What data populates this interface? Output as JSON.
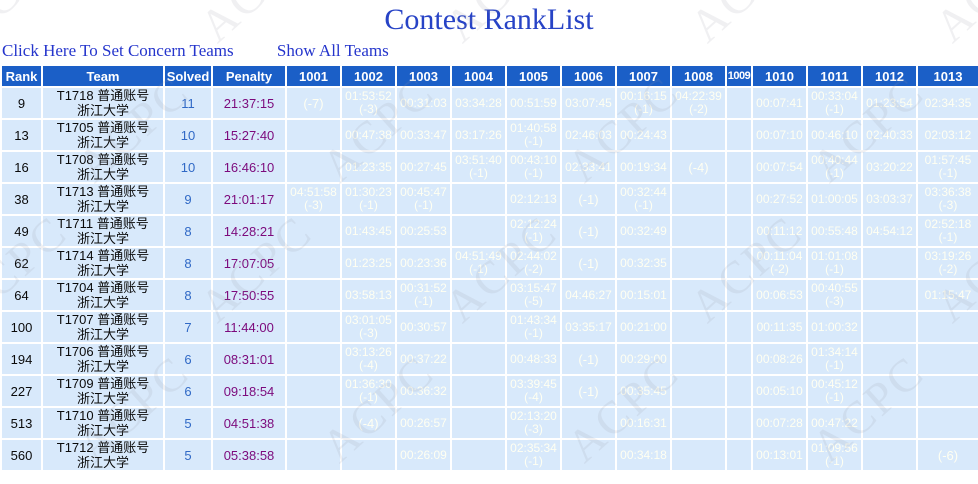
{
  "watermark": "ACPC",
  "title": "Contest RankList",
  "links": {
    "set_concern": "Click Here To Set Concern Teams",
    "show_all": "Show All Teams"
  },
  "colors": {
    "header_bg": "#1B5FC7",
    "row_bg": "#D8E9FB",
    "accepted_bg": "#007B00",
    "failed_bg": "#FF0000",
    "cell_text_on_color": "#FFFFF2",
    "solved_text": "#3069C6",
    "penalty_text": "#7C0A7C",
    "title_text": "#2743C6",
    "link_text": "#2535CC"
  },
  "table": {
    "fixed_headers": [
      "Rank",
      "Team",
      "Solved",
      "Penalty"
    ],
    "problems": [
      "1001",
      "1002",
      "1003",
      "1004",
      "1005",
      "1006",
      "1007",
      "1008",
      "1009",
      "1010",
      "1011",
      "1012",
      "1013"
    ],
    "rows": [
      {
        "rank": "9",
        "team": [
          "T1718 普通账号",
          "浙江大学"
        ],
        "solved": "11",
        "penalty": "21:37:15",
        "cells": [
          {
            "s": "no",
            "x": "(-7)"
          },
          {
            "s": "ac",
            "t": "01:53:52",
            "x": "(-3)"
          },
          {
            "s": "ac",
            "t": "00:31:03"
          },
          {
            "s": "ac",
            "t": "03:34:28"
          },
          {
            "s": "ac",
            "t": "00:51:59"
          },
          {
            "s": "ac",
            "t": "03:07:45"
          },
          {
            "s": "ac",
            "t": "00:16:15",
            "x": "(-1)"
          },
          {
            "s": "ac",
            "t": "04:22:39",
            "x": "(-2)"
          },
          null,
          {
            "s": "ac",
            "t": "00:07:41"
          },
          {
            "s": "ac",
            "t": "00:33:04",
            "x": "(-1)"
          },
          {
            "s": "ac",
            "t": "01:23:54"
          },
          {
            "s": "ac",
            "t": "02:34:35"
          }
        ]
      },
      {
        "rank": "13",
        "team": [
          "T1705 普通账号",
          "浙江大学"
        ],
        "solved": "10",
        "penalty": "15:27:40",
        "cells": [
          null,
          {
            "s": "ac",
            "t": "00:47:38"
          },
          {
            "s": "ac",
            "t": "00:33:47"
          },
          {
            "s": "ac",
            "t": "03:17:26"
          },
          {
            "s": "ac",
            "t": "01:40:58",
            "x": "(-1)"
          },
          {
            "s": "ac",
            "t": "02:46:03"
          },
          {
            "s": "ac",
            "t": "00:24:43"
          },
          null,
          null,
          {
            "s": "ac",
            "t": "00:07:10"
          },
          {
            "s": "ac",
            "t": "00:46:10"
          },
          {
            "s": "ac",
            "t": "02:40:33"
          },
          {
            "s": "ac",
            "t": "02:03:12"
          }
        ]
      },
      {
        "rank": "16",
        "team": [
          "T1708 普通账号",
          "浙江大学"
        ],
        "solved": "10",
        "penalty": "16:46:10",
        "cells": [
          null,
          {
            "s": "ac",
            "t": "01:23:35"
          },
          {
            "s": "ac",
            "t": "00:27:45"
          },
          {
            "s": "ac",
            "t": "03:51:40",
            "x": "(-1)"
          },
          {
            "s": "ac",
            "t": "00:43:10",
            "x": "(-1)"
          },
          {
            "s": "ac",
            "t": "02:33:41"
          },
          {
            "s": "ac",
            "t": "00:19:34"
          },
          {
            "s": "no",
            "x": "(-4)"
          },
          null,
          {
            "s": "ac",
            "t": "00:07:54"
          },
          {
            "s": "ac",
            "t": "00:40:44",
            "x": "(-1)"
          },
          {
            "s": "ac",
            "t": "03:20:22"
          },
          {
            "s": "ac",
            "t": "01:57:45",
            "x": "(-1)"
          }
        ]
      },
      {
        "rank": "38",
        "team": [
          "T1713 普通账号",
          "浙江大学"
        ],
        "solved": "9",
        "penalty": "21:01:17",
        "cells": [
          {
            "s": "ac",
            "t": "04:51:58",
            "x": "(-3)"
          },
          {
            "s": "ac",
            "t": "01:30:23",
            "x": "(-1)"
          },
          {
            "s": "ac",
            "t": "00:45:47",
            "x": "(-1)"
          },
          null,
          {
            "s": "ac",
            "t": "02:12:13"
          },
          {
            "s": "no",
            "x": "(-1)"
          },
          {
            "s": "ac",
            "t": "00:32:44",
            "x": "(-1)"
          },
          null,
          null,
          {
            "s": "ac",
            "t": "00:27:52"
          },
          {
            "s": "ac",
            "t": "01:00:05"
          },
          {
            "s": "ac",
            "t": "03:03:37"
          },
          {
            "s": "ac",
            "t": "03:36:38",
            "x": "(-3)"
          }
        ]
      },
      {
        "rank": "49",
        "team": [
          "T1711 普通账号",
          "浙江大学"
        ],
        "solved": "8",
        "penalty": "14:28:21",
        "cells": [
          null,
          {
            "s": "ac",
            "t": "01:43:45"
          },
          {
            "s": "ac",
            "t": "00:25:53"
          },
          null,
          {
            "s": "ac",
            "t": "02:12:24",
            "x": "(-1)"
          },
          {
            "s": "no",
            "x": "(-1)"
          },
          {
            "s": "ac",
            "t": "00:32:49"
          },
          null,
          null,
          {
            "s": "ac",
            "t": "00:11:12"
          },
          {
            "s": "ac",
            "t": "00:55:48"
          },
          {
            "s": "ac",
            "t": "04:54:12"
          },
          {
            "s": "ac",
            "t": "02:52:18",
            "x": "(-1)"
          }
        ]
      },
      {
        "rank": "62",
        "team": [
          "T1714 普通账号",
          "浙江大学"
        ],
        "solved": "8",
        "penalty": "17:07:05",
        "cells": [
          null,
          {
            "s": "ac",
            "t": "01:23:25"
          },
          {
            "s": "ac",
            "t": "00:23:36"
          },
          {
            "s": "ac",
            "t": "04:51:49",
            "x": "(-1)"
          },
          {
            "s": "ac",
            "t": "02:44:02",
            "x": "(-2)"
          },
          {
            "s": "no",
            "x": "(-1)"
          },
          {
            "s": "ac",
            "t": "00:32:35"
          },
          null,
          null,
          {
            "s": "ac",
            "t": "00:11:04",
            "x": "(-2)"
          },
          {
            "s": "ac",
            "t": "01:01:08",
            "x": "(-1)"
          },
          null,
          {
            "s": "ac",
            "t": "03:19:26",
            "x": "(-2)"
          }
        ]
      },
      {
        "rank": "64",
        "team": [
          "T1704 普通账号",
          "浙江大学"
        ],
        "solved": "8",
        "penalty": "17:50:55",
        "cells": [
          null,
          {
            "s": "ac",
            "t": "03:58:13"
          },
          {
            "s": "ac",
            "t": "00:31:52",
            "x": "(-1)"
          },
          null,
          {
            "s": "ac",
            "t": "03:15:47",
            "x": "(-5)"
          },
          {
            "s": "ac",
            "t": "04:46:27"
          },
          {
            "s": "ac",
            "t": "00:15:01"
          },
          null,
          null,
          {
            "s": "ac",
            "t": "00:06:53"
          },
          {
            "s": "ac",
            "t": "00:40:55",
            "x": "(-3)"
          },
          null,
          {
            "s": "ac",
            "t": "01:15:47"
          }
        ]
      },
      {
        "rank": "100",
        "team": [
          "T1707 普通账号",
          "浙江大学"
        ],
        "solved": "7",
        "penalty": "11:44:00",
        "cells": [
          null,
          {
            "s": "ac",
            "t": "03:01:05",
            "x": "(-3)"
          },
          {
            "s": "ac",
            "t": "00:30:57"
          },
          null,
          {
            "s": "ac",
            "t": "01:43:34",
            "x": "(-1)"
          },
          {
            "s": "ac",
            "t": "03:35:17"
          },
          {
            "s": "ac",
            "t": "00:21:00"
          },
          null,
          null,
          {
            "s": "ac",
            "t": "00:11:35"
          },
          {
            "s": "ac",
            "t": "01:00:32"
          },
          null,
          null
        ]
      },
      {
        "rank": "194",
        "team": [
          "T1706 普通账号",
          "浙江大学"
        ],
        "solved": "6",
        "penalty": "08:31:01",
        "cells": [
          null,
          {
            "s": "ac",
            "t": "03:13:26",
            "x": "(-4)"
          },
          {
            "s": "ac",
            "t": "00:37:22"
          },
          null,
          {
            "s": "ac",
            "t": "00:48:33"
          },
          {
            "s": "no",
            "x": "(-1)"
          },
          {
            "s": "ac",
            "t": "00:29:00"
          },
          null,
          null,
          {
            "s": "ac",
            "t": "00:08:26"
          },
          {
            "s": "ac",
            "t": "01:34:14",
            "x": "(-1)"
          },
          null,
          null
        ]
      },
      {
        "rank": "227",
        "team": [
          "T1709 普通账号",
          "浙江大学"
        ],
        "solved": "6",
        "penalty": "09:18:54",
        "cells": [
          null,
          {
            "s": "ac",
            "t": "01:36:30",
            "x": "(-1)"
          },
          {
            "s": "ac",
            "t": "00:36:32"
          },
          null,
          {
            "s": "ac",
            "t": "03:39:45",
            "x": "(-4)"
          },
          {
            "s": "no",
            "x": "(-1)"
          },
          {
            "s": "ac",
            "t": "00:35:45"
          },
          null,
          null,
          {
            "s": "ac",
            "t": "00:05:10"
          },
          {
            "s": "ac",
            "t": "00:45:12",
            "x": "(-1)"
          },
          null,
          null
        ]
      },
      {
        "rank": "513",
        "team": [
          "T1710 普通账号",
          "浙江大学"
        ],
        "solved": "5",
        "penalty": "04:51:38",
        "cells": [
          null,
          {
            "s": "no",
            "x": "(-4)"
          },
          {
            "s": "ac",
            "t": "00:26:57"
          },
          null,
          {
            "s": "ac",
            "t": "02:13:20",
            "x": "(-3)"
          },
          null,
          {
            "s": "ac",
            "t": "00:16:31"
          },
          null,
          null,
          {
            "s": "ac",
            "t": "00:07:28"
          },
          {
            "s": "ac",
            "t": "00:47:22"
          },
          null,
          null
        ]
      },
      {
        "rank": "560",
        "team": [
          "T1712 普通账号",
          "浙江大学"
        ],
        "solved": "5",
        "penalty": "05:38:58",
        "cells": [
          null,
          null,
          {
            "s": "ac",
            "t": "00:26:09"
          },
          null,
          {
            "s": "ac",
            "t": "02:35:34",
            "x": "(-1)"
          },
          null,
          {
            "s": "ac",
            "t": "00:34:18"
          },
          null,
          null,
          {
            "s": "ac",
            "t": "00:13:01"
          },
          {
            "s": "ac",
            "t": "01:09:56",
            "x": "(-1)"
          },
          null,
          {
            "s": "no",
            "x": "(-6)"
          }
        ]
      }
    ]
  }
}
